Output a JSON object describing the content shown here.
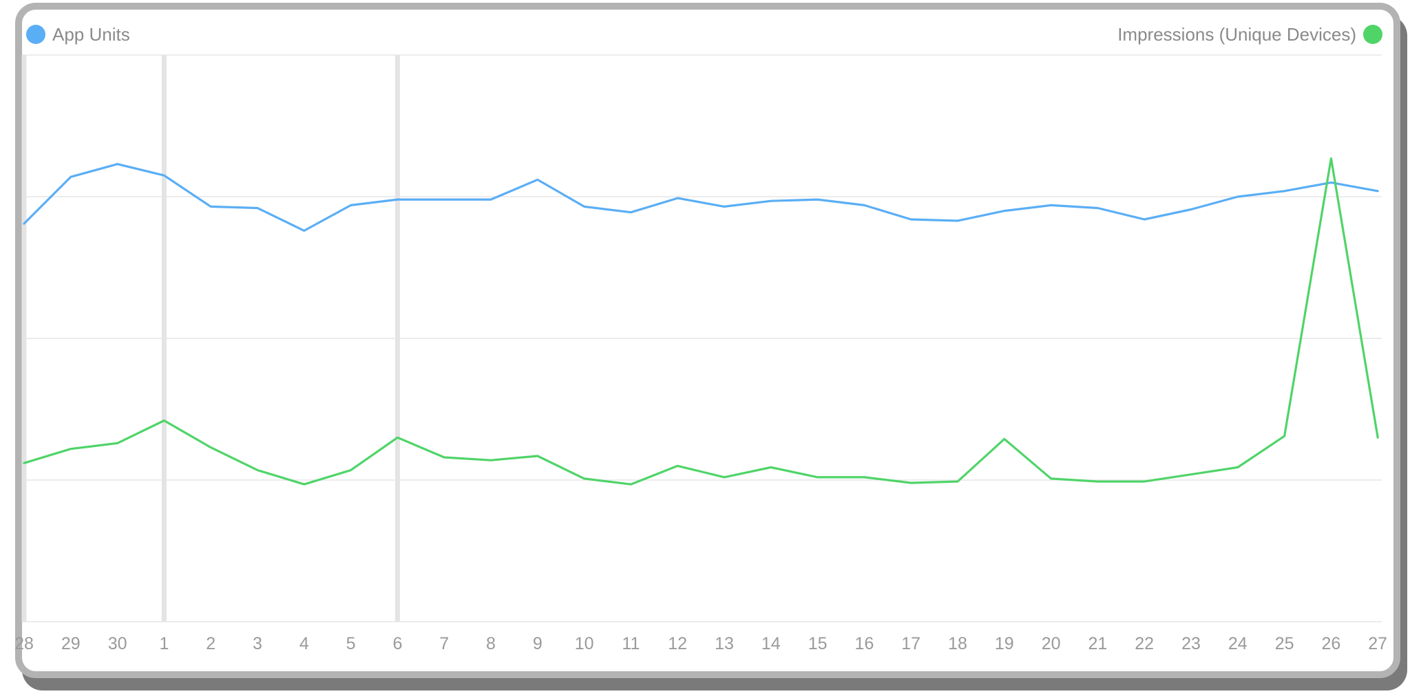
{
  "chart_data": {
    "type": "line",
    "categories": [
      "28",
      "29",
      "30",
      "1",
      "2",
      "3",
      "4",
      "5",
      "6",
      "7",
      "8",
      "9",
      "10",
      "11",
      "12",
      "13",
      "14",
      "15",
      "16",
      "17",
      "18",
      "19",
      "20",
      "21",
      "22",
      "23",
      "24",
      "25",
      "26",
      "27"
    ],
    "ylim": [
      0,
      4
    ],
    "grid": true,
    "legend": "top",
    "series": [
      {
        "name": "App Units",
        "color": "#5aaef5",
        "axis": "left",
        "values": [
          2.81,
          3.14,
          3.23,
          3.15,
          2.93,
          2.92,
          2.76,
          2.94,
          2.98,
          2.98,
          2.98,
          3.12,
          2.93,
          2.89,
          2.99,
          2.93,
          2.97,
          2.98,
          2.94,
          2.84,
          2.83,
          2.9,
          2.94,
          2.92,
          2.84,
          2.91,
          3.0,
          3.04,
          3.1,
          3.04
        ]
      },
      {
        "name": "Impressions (Unique Devices)",
        "color": "#4fd468",
        "axis": "right",
        "values": [
          1.12,
          1.22,
          1.26,
          1.42,
          1.23,
          1.07,
          0.97,
          1.07,
          1.3,
          1.16,
          1.14,
          1.17,
          1.01,
          0.97,
          1.1,
          1.02,
          1.09,
          1.02,
          1.02,
          0.98,
          0.99,
          1.29,
          1.01,
          0.99,
          0.99,
          1.04,
          1.09,
          1.31,
          3.27,
          1.3
        ]
      }
    ],
    "highlight_categories": [
      "28",
      "1",
      "6"
    ]
  }
}
